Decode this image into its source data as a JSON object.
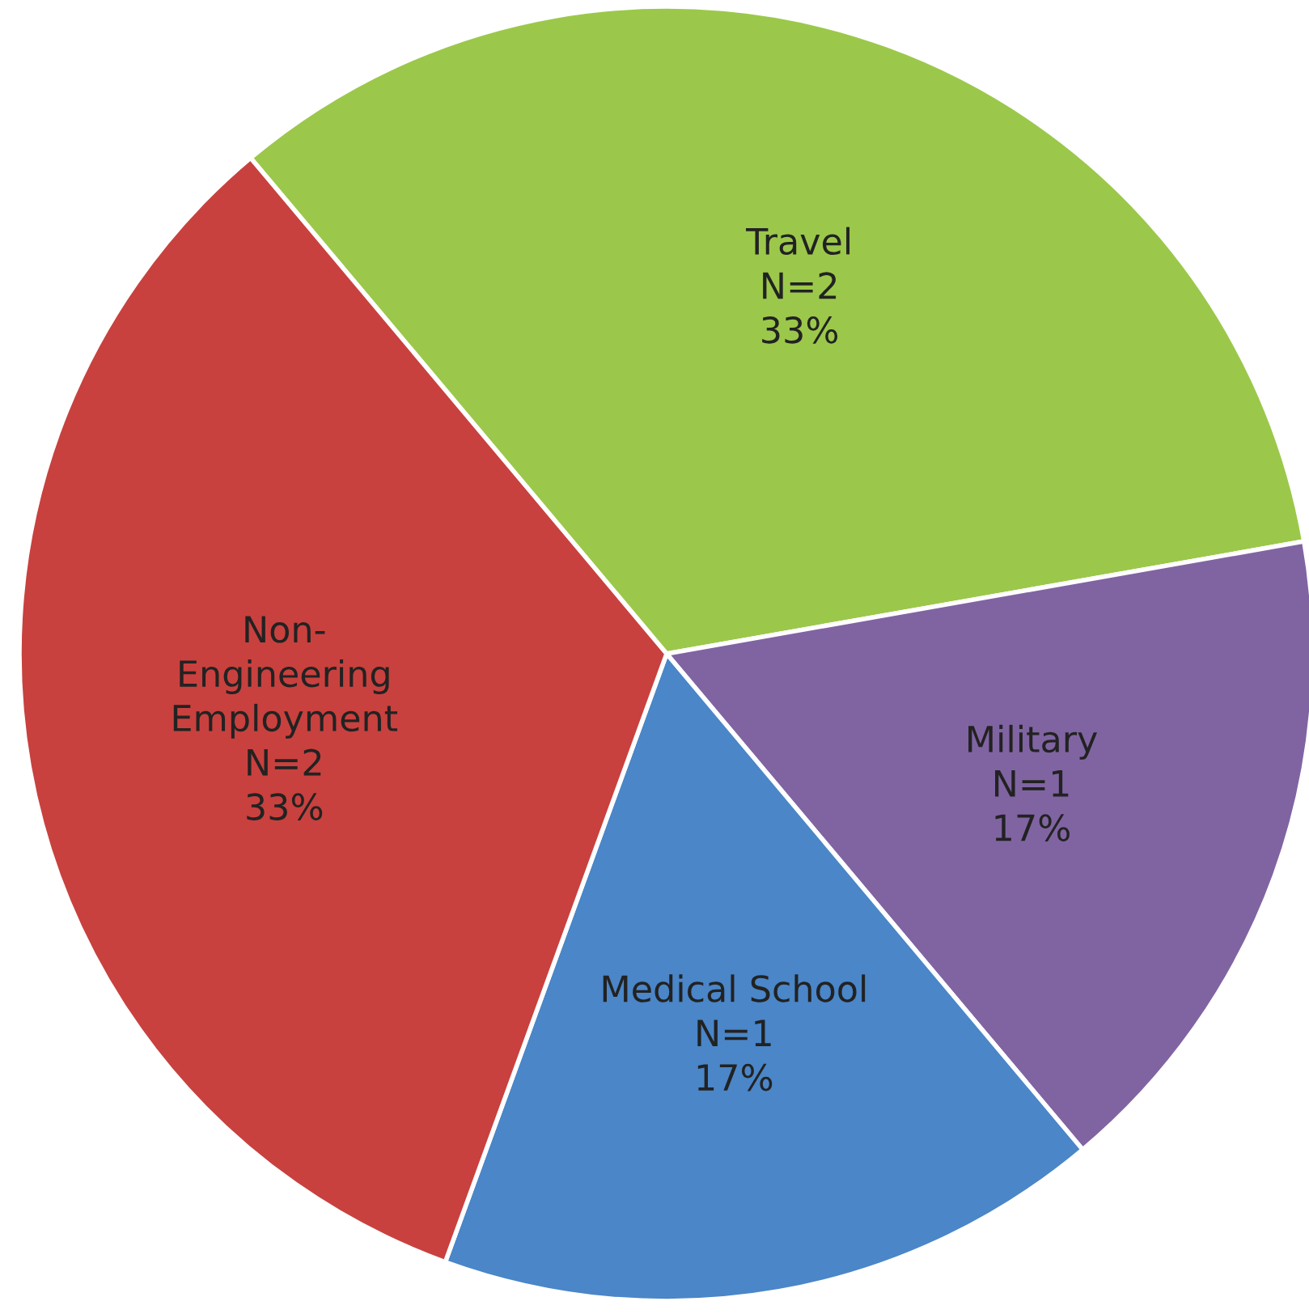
{
  "chart_data": {
    "type": "pie",
    "categories": [
      "Travel",
      "Military",
      "Medical School",
      "Non-\nEngineering\nEmployment"
    ],
    "values": [
      2,
      1,
      1,
      2
    ],
    "value_labels": [
      "N=2\n33%",
      "N=1\n17%",
      "N=1\n17%",
      "N=2\n33%"
    ],
    "colors": [
      "#9bc84a",
      "#8064a2",
      "#4a86c8",
      "#c8413e"
    ]
  }
}
